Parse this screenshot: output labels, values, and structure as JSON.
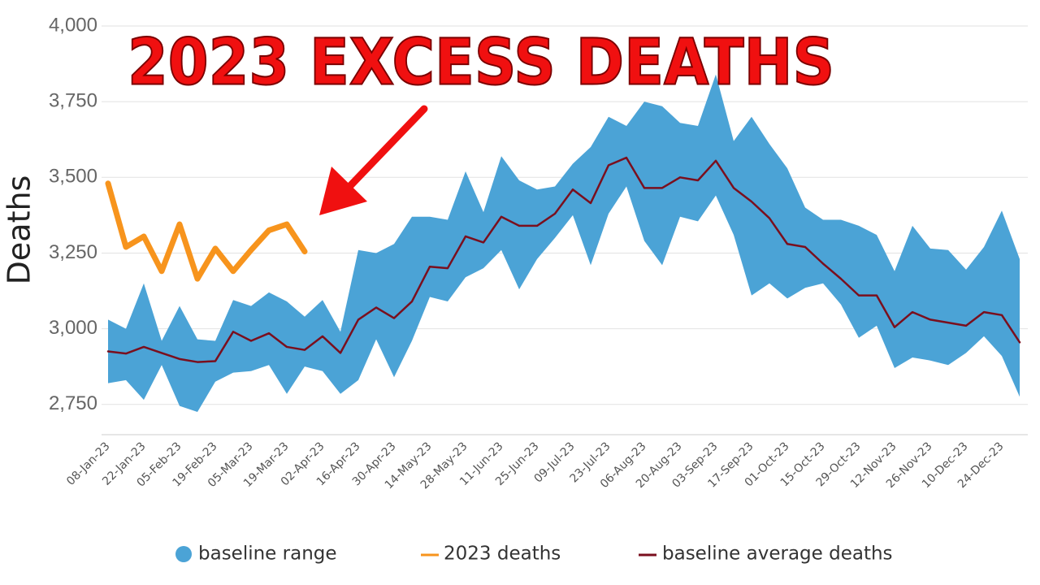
{
  "chart_data": {
    "type": "line",
    "annotation": "2023 EXCESS DEATHS",
    "ylabel": "Deaths",
    "categories": [
      "08-Jan-23",
      null,
      "22-Jan-23",
      null,
      "05-Feb-23",
      null,
      "19-Feb-23",
      null,
      "05-Mar-23",
      null,
      "19-Mar-23",
      null,
      "02-Apr-23",
      null,
      "16-Apr-23",
      null,
      "30-Apr-23",
      null,
      "14-May-23",
      null,
      "28-May-23",
      null,
      "11-Jun-23",
      null,
      "25-Jun-23",
      null,
      "09-Jul-23",
      null,
      "23-Jul-23",
      null,
      "06-Aug-23",
      null,
      "20-Aug-23",
      null,
      "03-Sep-23",
      null,
      "17-Sep-23",
      null,
      "01-Oct-23",
      null,
      "15-Oct-23",
      null,
      "29-Oct-23",
      null,
      "12-Nov-23",
      null,
      "26-Nov-23",
      null,
      "10-Dec-23",
      null,
      "24-Dec-23",
      null
    ],
    "range": {
      "name": "baseline range",
      "color": "#4ba3d6",
      "high": [
        3030,
        3000,
        3150,
        2960,
        3075,
        2965,
        2960,
        3095,
        3075,
        3120,
        3090,
        3040,
        3095,
        2990,
        3260,
        3250,
        3280,
        3370,
        3370,
        3360,
        3520,
        3385,
        3570,
        3490,
        3460,
        3470,
        3545,
        3600,
        3700,
        3670,
        3750,
        3735,
        3680,
        3670,
        3840,
        3620,
        3700,
        3610,
        3530,
        3400,
        3360,
        3360,
        3340,
        3310,
        3190,
        3340,
        3265,
        3260,
        3195,
        3270,
        3390,
        3230
      ],
      "low": [
        2820,
        2830,
        2765,
        2880,
        2745,
        2725,
        2825,
        2855,
        2860,
        2880,
        2785,
        2875,
        2860,
        2785,
        2830,
        2965,
        2840,
        2960,
        3105,
        3090,
        3170,
        3200,
        3260,
        3130,
        3230,
        3300,
        3375,
        3210,
        3380,
        3470,
        3290,
        3210,
        3370,
        3355,
        3440,
        3310,
        3110,
        3150,
        3100,
        3135,
        3150,
        3080,
        2970,
        3010,
        2870,
        2905,
        2895,
        2880,
        2920,
        2975,
        2910,
        2775
      ]
    },
    "series": [
      {
        "name": "2023 deaths",
        "color": "#f7941d",
        "values": [
          3480,
          3270,
          3305,
          3190,
          3345,
          3165,
          3265,
          3190,
          3260,
          3325,
          3345,
          3255,
          null,
          null,
          null,
          null,
          null,
          null,
          null,
          null,
          null,
          null,
          null,
          null,
          null,
          null,
          null,
          null,
          null,
          null,
          null,
          null,
          null,
          null,
          null,
          null,
          null,
          null,
          null,
          null,
          null,
          null,
          null,
          null,
          null,
          null,
          null,
          null,
          null,
          null,
          null,
          null
        ]
      },
      {
        "name": "baseline average deaths",
        "color": "#7a0f1e",
        "values": [
          2925,
          2918,
          2940,
          2920,
          2900,
          2890,
          2893,
          2990,
          2960,
          2985,
          2940,
          2930,
          2975,
          2920,
          3030,
          3070,
          3035,
          3090,
          3205,
          3200,
          3305,
          3285,
          3370,
          3340,
          3340,
          3380,
          3460,
          3415,
          3540,
          3565,
          3465,
          3465,
          3500,
          3490,
          3555,
          3465,
          3420,
          3365,
          3280,
          3270,
          3215,
          3165,
          3110,
          3110,
          3005,
          3055,
          3030,
          3020,
          3010,
          3055,
          3045,
          2955
        ]
      }
    ],
    "ylim": [
      2650,
      4000
    ],
    "yticks": [
      {
        "value": 2750,
        "label": "2,750"
      },
      {
        "value": 3000,
        "label": "3,000"
      },
      {
        "value": 3250,
        "label": "3,250"
      },
      {
        "value": 3500,
        "label": "3,500"
      },
      {
        "value": 3750,
        "label": "3,750"
      },
      {
        "value": 4000,
        "label": "4,000"
      }
    ],
    "grid": true
  }
}
